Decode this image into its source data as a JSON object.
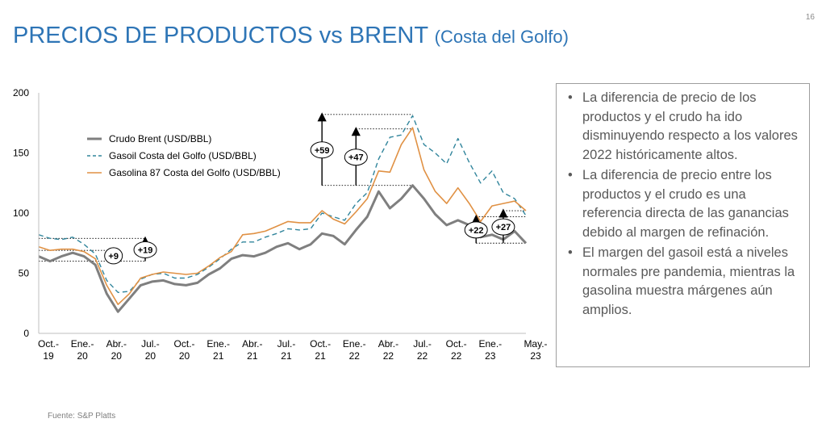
{
  "page_number": "16",
  "title": {
    "main": "PRECIOS DE PRODUCTOS vs BRENT",
    "sub": "(Costa del Golfo)"
  },
  "source": "Fuente: S&P Platts",
  "notes": [
    "La diferencia de precio de los productos y el crudo ha ido disminuyendo respecto a los valores 2022 históricamente altos.",
    "La diferencia de precio entre los productos y el crudo es una referencia directa de las ganancias debido al margen de refinación.",
    "El margen del gasoil está a niveles normales pre pandemia, mientras la gasolina muestra márgenes aún amplios."
  ],
  "bullet_char": "•",
  "chart_data": {
    "type": "line",
    "ylim": [
      0,
      200
    ],
    "yticks": [
      0,
      50,
      100,
      150,
      200
    ],
    "xlim": [
      0,
      43
    ],
    "x_ticks": [
      {
        "i": 0,
        "line1": "Oct.-",
        "line2": "19"
      },
      {
        "i": 3,
        "line1": "Ene.-",
        "line2": "20"
      },
      {
        "i": 6,
        "line1": "Abr.-",
        "line2": "20"
      },
      {
        "i": 9,
        "line1": "Jul.-",
        "line2": "20"
      },
      {
        "i": 12,
        "line1": "Oct.-",
        "line2": "20"
      },
      {
        "i": 15,
        "line1": "Ene.-",
        "line2": "21"
      },
      {
        "i": 18,
        "line1": "Abr.-",
        "line2": "21"
      },
      {
        "i": 21,
        "line1": "Jul.-",
        "line2": "21"
      },
      {
        "i": 24,
        "line1": "Oct.-",
        "line2": "21"
      },
      {
        "i": 27,
        "line1": "Ene.-",
        "line2": "22"
      },
      {
        "i": 30,
        "line1": "Abr.-",
        "line2": "22"
      },
      {
        "i": 33,
        "line1": "Jul.-",
        "line2": "22"
      },
      {
        "i": 36,
        "line1": "Oct.-",
        "line2": "22"
      },
      {
        "i": 39,
        "line1": "Ene.-",
        "line2": "23"
      },
      {
        "i": 43,
        "line1": "May.-",
        "line2": "23"
      }
    ],
    "series": [
      {
        "name": "Crudo Brent (USD/BBL)",
        "color": "#7f7f7f",
        "dash": "none",
        "width": 3,
        "values": [
          64,
          60,
          64,
          67,
          64,
          57,
          33,
          18,
          29,
          40,
          43,
          44,
          41,
          40,
          42,
          49,
          54,
          62,
          65,
          64,
          67,
          72,
          75,
          70,
          74,
          83,
          81,
          74,
          86,
          97,
          118,
          104,
          112,
          123,
          112,
          99,
          90,
          94,
          90,
          80,
          82,
          78,
          85,
          75
        ]
      },
      {
        "name": "Gasoil Costa del Golfo (USD/BBL)",
        "color": "#31859c",
        "dash": "6,4",
        "width": 1.4,
        "values": [
          82,
          79,
          78,
          80,
          74,
          66,
          44,
          34,
          35,
          45,
          49,
          50,
          46,
          46,
          49,
          55,
          62,
          70,
          76,
          76,
          80,
          83,
          87,
          86,
          87,
          100,
          97,
          94,
          108,
          117,
          145,
          163,
          165,
          181,
          157,
          150,
          141,
          162,
          142,
          125,
          135,
          117,
          112,
          98
        ]
      },
      {
        "name": "Gasolina 87 Costa del Golfo (USD/BBL)",
        "color": "#e09144",
        "dash": "none",
        "width": 1.6,
        "values": [
          72,
          69,
          70,
          70,
          68,
          62,
          40,
          24,
          33,
          46,
          49,
          51,
          50,
          49,
          50,
          56,
          63,
          68,
          82,
          83,
          85,
          89,
          93,
          92,
          92,
          102,
          95,
          91,
          101,
          112,
          135,
          134,
          157,
          171,
          136,
          118,
          108,
          121,
          108,
          93,
          106,
          108,
          110,
          102
        ]
      }
    ],
    "annotations": [
      {
        "label": "+9",
        "i": 6.6,
        "from": 60,
        "to": 69
      },
      {
        "label": "+19",
        "i": 9.4,
        "from": 60,
        "to": 79
      },
      {
        "label": "+59",
        "i": 25,
        "from": 123,
        "to": 182
      },
      {
        "label": "+47",
        "i": 28,
        "from": 123,
        "to": 170
      },
      {
        "label": "+22",
        "i": 38.6,
        "from": 75,
        "to": 97
      },
      {
        "label": "+27",
        "i": 41,
        "from": 75,
        "to": 102
      }
    ],
    "ref_lines": [
      {
        "from_i": 0,
        "to_i": 9.4,
        "y": 79
      },
      {
        "from_i": 0,
        "to_i": 6.6,
        "y": 69
      },
      {
        "from_i": 0,
        "to_i": 9.4,
        "y": 60
      },
      {
        "from_i": 25,
        "to_i": 33,
        "y": 182
      },
      {
        "from_i": 28,
        "to_i": 33,
        "y": 170
      },
      {
        "from_i": 25,
        "to_i": 33,
        "y": 123
      },
      {
        "from_i": 38.6,
        "to_i": 43,
        "y": 97
      },
      {
        "from_i": 41,
        "to_i": 43,
        "y": 102
      },
      {
        "from_i": 38.6,
        "to_i": 43,
        "y": 75
      }
    ]
  }
}
